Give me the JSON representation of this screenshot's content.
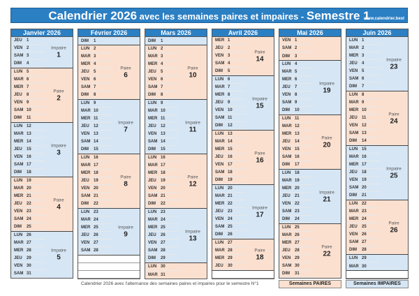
{
  "title": {
    "part1": "Calendrier 2026",
    "part2": " avec les semaines paires et impaires - ",
    "part3": "Semestre 1",
    "site": "www.calendrier.best"
  },
  "colors": {
    "header": "#2b7fc3",
    "pair": "#fbe0d0",
    "impair": "#d6e6f5"
  },
  "labels": {
    "pair": "Paire",
    "impair": "Impaire"
  },
  "months": [
    {
      "name": "Janvier 2026",
      "weeks": [
        {
          "type": "impair",
          "num": "1",
          "days": [
            [
              "JEU",
              "1"
            ],
            [
              "VEN",
              "2"
            ],
            [
              "SAM",
              "3"
            ],
            [
              "DIM",
              "4"
            ]
          ]
        },
        {
          "type": "pair",
          "num": "2",
          "days": [
            [
              "LUN",
              "5"
            ],
            [
              "MAR",
              "6"
            ],
            [
              "MER",
              "7"
            ],
            [
              "JEU",
              "8"
            ],
            [
              "VEN",
              "9"
            ],
            [
              "SAM",
              "10"
            ],
            [
              "DIM",
              "11"
            ]
          ]
        },
        {
          "type": "impair",
          "num": "3",
          "days": [
            [
              "LUN",
              "12"
            ],
            [
              "MAR",
              "13"
            ],
            [
              "MER",
              "14"
            ],
            [
              "JEU",
              "15"
            ],
            [
              "VEN",
              "16"
            ],
            [
              "SAM",
              "17"
            ],
            [
              "DIM",
              "18"
            ]
          ]
        },
        {
          "type": "pair",
          "num": "4",
          "days": [
            [
              "LUN",
              "19"
            ],
            [
              "MAR",
              "20"
            ],
            [
              "MER",
              "21"
            ],
            [
              "JEU",
              "22"
            ],
            [
              "VEN",
              "23"
            ],
            [
              "SAM",
              "24"
            ],
            [
              "DIM",
              "25"
            ]
          ]
        },
        {
          "type": "impair",
          "num": "5",
          "days": [
            [
              "LUN",
              "26"
            ],
            [
              "MAR",
              "27"
            ],
            [
              "MER",
              "28"
            ],
            [
              "JEU",
              "29"
            ],
            [
              "VEN",
              "30"
            ],
            [
              "SAM",
              "31"
            ]
          ]
        }
      ]
    },
    {
      "name": "Février 2026",
      "weeks": [
        {
          "type": "impair",
          "num": "",
          "days": [
            [
              "DIM",
              "1"
            ]
          ]
        },
        {
          "type": "pair",
          "num": "6",
          "days": [
            [
              "LUN",
              "2"
            ],
            [
              "MAR",
              "3"
            ],
            [
              "MER",
              "4"
            ],
            [
              "JEU",
              "5"
            ],
            [
              "VEN",
              "6"
            ],
            [
              "SAM",
              "7"
            ],
            [
              "DIM",
              "8"
            ]
          ]
        },
        {
          "type": "impair",
          "num": "7",
          "days": [
            [
              "LUN",
              "9"
            ],
            [
              "MAR",
              "10"
            ],
            [
              "MER",
              "11"
            ],
            [
              "JEU",
              "12"
            ],
            [
              "VEN",
              "13"
            ],
            [
              "SAM",
              "14"
            ],
            [
              "DIM",
              "15"
            ]
          ]
        },
        {
          "type": "pair",
          "num": "8",
          "days": [
            [
              "LUN",
              "16"
            ],
            [
              "MAR",
              "17"
            ],
            [
              "MER",
              "18"
            ],
            [
              "JEU",
              "19"
            ],
            [
              "VEN",
              "20"
            ],
            [
              "SAM",
              "21"
            ],
            [
              "DIM",
              "22"
            ]
          ]
        },
        {
          "type": "impair",
          "num": "9",
          "days": [
            [
              "LUN",
              "23"
            ],
            [
              "MAR",
              "24"
            ],
            [
              "MER",
              "25"
            ],
            [
              "JEU",
              "26"
            ],
            [
              "VEN",
              "27"
            ],
            [
              "SAM",
              "28"
            ]
          ]
        },
        {
          "type": "empty",
          "num": "",
          "days": [
            [
              "",
              ""
            ],
            [
              "",
              ""
            ],
            [
              "",
              ""
            ]
          ]
        }
      ]
    },
    {
      "name": "Mars 2026",
      "weeks": [
        {
          "type": "impair",
          "num": "",
          "days": [
            [
              "DIM",
              "1"
            ]
          ]
        },
        {
          "type": "pair",
          "num": "10",
          "days": [
            [
              "LUN",
              "2"
            ],
            [
              "MAR",
              "3"
            ],
            [
              "MER",
              "4"
            ],
            [
              "JEU",
              "5"
            ],
            [
              "VEN",
              "6"
            ],
            [
              "SAM",
              "7"
            ],
            [
              "DIM",
              "8"
            ]
          ]
        },
        {
          "type": "impair",
          "num": "11",
          "days": [
            [
              "LUN",
              "9"
            ],
            [
              "MAR",
              "10"
            ],
            [
              "MER",
              "11"
            ],
            [
              "JEU",
              "12"
            ],
            [
              "VEN",
              "13"
            ],
            [
              "SAM",
              "14"
            ],
            [
              "DIM",
              "15"
            ]
          ]
        },
        {
          "type": "pair",
          "num": "12",
          "days": [
            [
              "LUN",
              "16"
            ],
            [
              "MAR",
              "17"
            ],
            [
              "MER",
              "18"
            ],
            [
              "JEU",
              "19"
            ],
            [
              "VEN",
              "20"
            ],
            [
              "SAM",
              "21"
            ],
            [
              "DIM",
              "22"
            ]
          ]
        },
        {
          "type": "impair",
          "num": "13",
          "days": [
            [
              "LUN",
              "23"
            ],
            [
              "MAR",
              "24"
            ],
            [
              "MER",
              "25"
            ],
            [
              "JEU",
              "26"
            ],
            [
              "VEN",
              "27"
            ],
            [
              "SAM",
              "28"
            ],
            [
              "DIM",
              "29"
            ]
          ]
        },
        {
          "type": "pair",
          "num": "",
          "days": [
            [
              "LUN",
              "30"
            ],
            [
              "MAR",
              "31"
            ]
          ]
        }
      ]
    },
    {
      "name": "Avril 2026",
      "weeks": [
        {
          "type": "pair",
          "num": "14",
          "days": [
            [
              "MER",
              "1"
            ],
            [
              "JEU",
              "2"
            ],
            [
              "VEN",
              "3"
            ],
            [
              "SAM",
              "4"
            ],
            [
              "DIM",
              "5"
            ]
          ]
        },
        {
          "type": "impair",
          "num": "15",
          "days": [
            [
              "LUN",
              "6"
            ],
            [
              "MAR",
              "7"
            ],
            [
              "MER",
              "8"
            ],
            [
              "JEU",
              "9"
            ],
            [
              "VEN",
              "10"
            ],
            [
              "SAM",
              "11"
            ],
            [
              "DIM",
              "12"
            ]
          ]
        },
        {
          "type": "pair",
          "num": "16",
          "days": [
            [
              "LUN",
              "13"
            ],
            [
              "MAR",
              "14"
            ],
            [
              "MER",
              "15"
            ],
            [
              "JEU",
              "16"
            ],
            [
              "VEN",
              "17"
            ],
            [
              "SAM",
              "18"
            ],
            [
              "DIM",
              "19"
            ]
          ]
        },
        {
          "type": "impair",
          "num": "17",
          "days": [
            [
              "LUN",
              "20"
            ],
            [
              "MAR",
              "21"
            ],
            [
              "MER",
              "22"
            ],
            [
              "JEU",
              "23"
            ],
            [
              "VEN",
              "24"
            ],
            [
              "SAM",
              "25"
            ],
            [
              "DIM",
              "26"
            ]
          ]
        },
        {
          "type": "pair",
          "num": "18",
          "days": [
            [
              "LUN",
              "27"
            ],
            [
              "MAR",
              "28"
            ],
            [
              "MER",
              "29"
            ],
            [
              "JEU",
              "30"
            ]
          ]
        },
        {
          "type": "empty",
          "num": "",
          "days": [
            [
              "",
              ""
            ]
          ]
        }
      ]
    },
    {
      "name": "Mai 2026",
      "weeks": [
        {
          "type": "pair",
          "num": "",
          "days": [
            [
              "VEN",
              "1"
            ],
            [
              "SAM",
              "2"
            ],
            [
              "DIM",
              "3"
            ]
          ]
        },
        {
          "type": "impair",
          "num": "19",
          "days": [
            [
              "LUN",
              "4"
            ],
            [
              "MAR",
              "5"
            ],
            [
              "MER",
              "6"
            ],
            [
              "JEU",
              "7"
            ],
            [
              "VEN",
              "8"
            ],
            [
              "SAM",
              "9"
            ],
            [
              "DIM",
              "10"
            ]
          ]
        },
        {
          "type": "pair",
          "num": "20",
          "days": [
            [
              "LUN",
              "11"
            ],
            [
              "MAR",
              "12"
            ],
            [
              "MER",
              "13"
            ],
            [
              "JEU",
              "14"
            ],
            [
              "VEN",
              "15"
            ],
            [
              "SAM",
              "16"
            ],
            [
              "DIM",
              "17"
            ]
          ]
        },
        {
          "type": "impair",
          "num": "21",
          "days": [
            [
              "LUN",
              "18"
            ],
            [
              "MAR",
              "19"
            ],
            [
              "MER",
              "20"
            ],
            [
              "JEU",
              "21"
            ],
            [
              "VEN",
              "22"
            ],
            [
              "SAM",
              "23"
            ],
            [
              "DIM",
              "24"
            ]
          ]
        },
        {
          "type": "pair",
          "num": "22",
          "days": [
            [
              "LUN",
              "25"
            ],
            [
              "MAR",
              "26"
            ],
            [
              "MER",
              "27"
            ],
            [
              "JEU",
              "28"
            ],
            [
              "VEN",
              "29"
            ],
            [
              "SAM",
              "30"
            ],
            [
              "DIM",
              "31"
            ]
          ]
        }
      ]
    },
    {
      "name": "Juin 2026",
      "weeks": [
        {
          "type": "impair",
          "num": "23",
          "days": [
            [
              "LUN",
              "1"
            ],
            [
              "MAR",
              "2"
            ],
            [
              "MER",
              "3"
            ],
            [
              "JEU",
              "4"
            ],
            [
              "VEN",
              "5"
            ],
            [
              "SAM",
              "6"
            ],
            [
              "DIM",
              "7"
            ]
          ]
        },
        {
          "type": "pair",
          "num": "24",
          "days": [
            [
              "LUN",
              "8"
            ],
            [
              "MAR",
              "9"
            ],
            [
              "MER",
              "10"
            ],
            [
              "JEU",
              "11"
            ],
            [
              "VEN",
              "12"
            ],
            [
              "SAM",
              "13"
            ],
            [
              "DIM",
              "14"
            ]
          ]
        },
        {
          "type": "impair",
          "num": "25",
          "days": [
            [
              "LUN",
              "15"
            ],
            [
              "MAR",
              "16"
            ],
            [
              "MER",
              "17"
            ],
            [
              "JEU",
              "18"
            ],
            [
              "VEN",
              "19"
            ],
            [
              "SAM",
              "20"
            ],
            [
              "DIM",
              "21"
            ]
          ]
        },
        {
          "type": "pair",
          "num": "26",
          "days": [
            [
              "LUN",
              "22"
            ],
            [
              "MAR",
              "23"
            ],
            [
              "MER",
              "24"
            ],
            [
              "JEU",
              "25"
            ],
            [
              "VEN",
              "26"
            ],
            [
              "SAM",
              "27"
            ],
            [
              "DIM",
              "28"
            ]
          ]
        },
        {
          "type": "impair",
          "num": "",
          "days": [
            [
              "LUN",
              "29"
            ],
            [
              "MAR",
              "30"
            ]
          ]
        },
        {
          "type": "empty",
          "num": "",
          "days": [
            [
              "",
              ""
            ]
          ]
        }
      ]
    }
  ],
  "footer": {
    "text": "Calendrier 2026 avec l'alternance des semaines paires et impaires pour le semestre N°1",
    "legend_pair": "Semaines PAIRES",
    "legend_impair": "Semaines IMPAIRES"
  }
}
